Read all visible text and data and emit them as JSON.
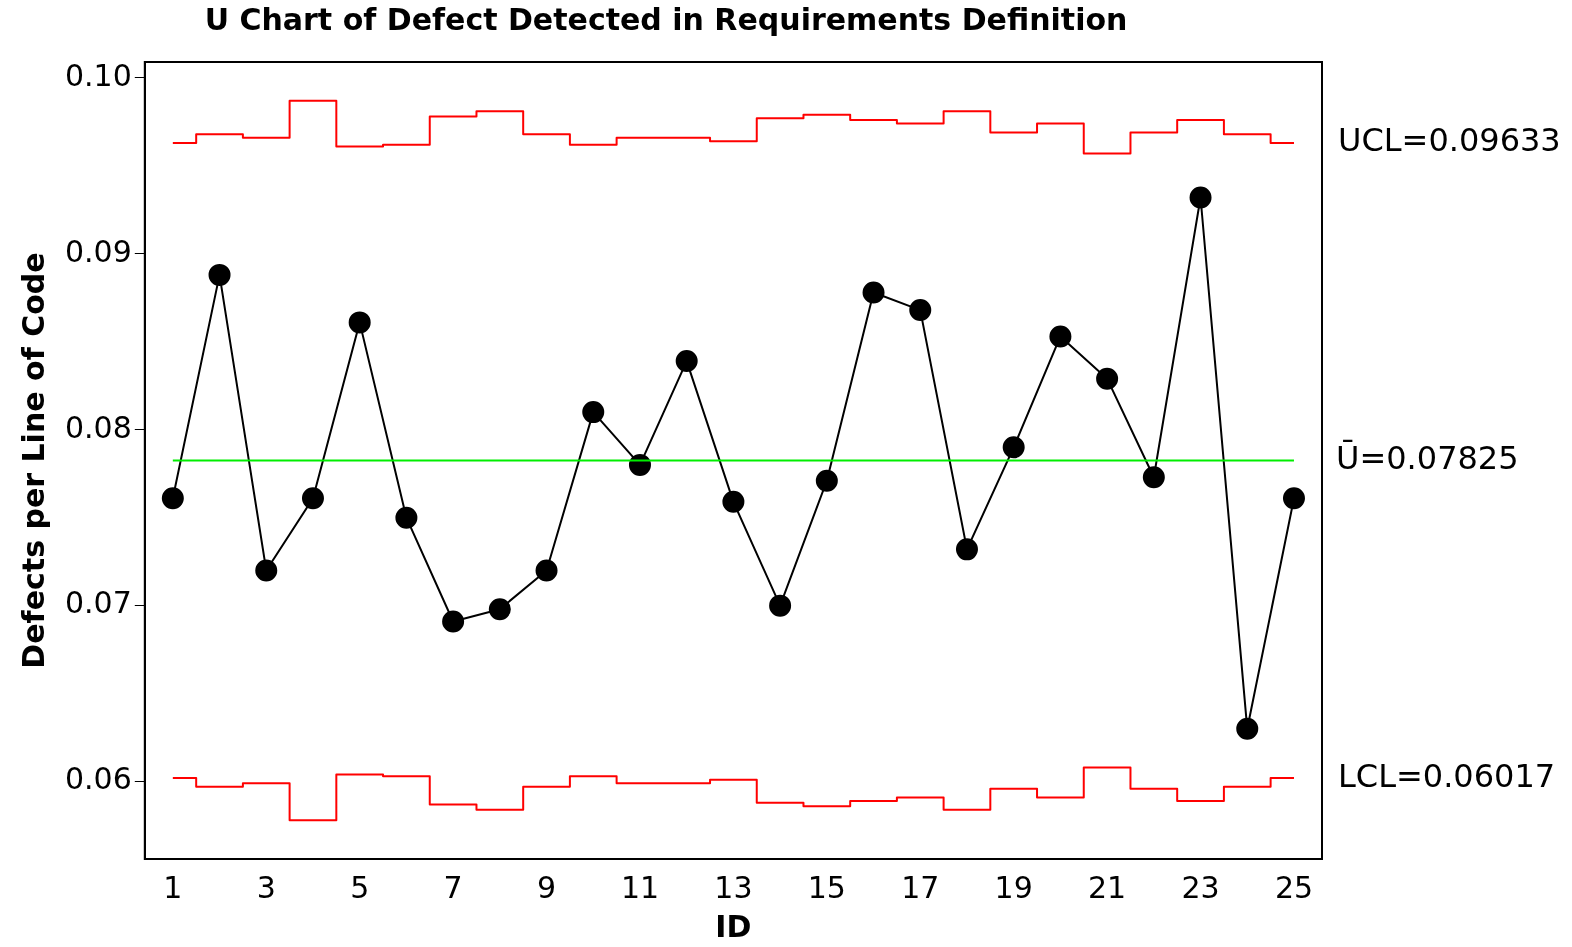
{
  "chart_data": {
    "type": "line",
    "title": "U Chart of Defect Detected in Requirements Definition",
    "xlabel": "ID",
    "ylabel": "Defects per Line of Code",
    "x": [
      1,
      2,
      3,
      4,
      5,
      6,
      7,
      8,
      9,
      10,
      11,
      12,
      13,
      14,
      15,
      16,
      17,
      18,
      19,
      20,
      21,
      22,
      23,
      24,
      25
    ],
    "series": [
      {
        "type": "step",
        "color": "#ff0000",
        "marker": "none",
        "values": [
          0.0963,
          0.0968,
          0.0966,
          0.0987,
          0.0961,
          0.0962,
          0.0978,
          0.0981,
          0.0968,
          0.0962,
          0.0966,
          0.0966,
          0.0964,
          0.0977,
          0.0979,
          0.0976,
          0.0974,
          0.0981,
          0.0969,
          0.0974,
          0.0957,
          0.0969,
          0.0976,
          0.0968,
          0.0963
        ]
      },
      {
        "type": "step",
        "color": "#ff0000",
        "marker": "none",
        "values": [
          0.0602,
          0.0597,
          0.0599,
          0.0578,
          0.0604,
          0.0603,
          0.0587,
          0.0584,
          0.0597,
          0.0603,
          0.0599,
          0.0599,
          0.0601,
          0.0588,
          0.0586,
          0.0589,
          0.0591,
          0.0584,
          0.0596,
          0.0591,
          0.0608,
          0.0596,
          0.0589,
          0.0597,
          0.0602
        ]
      },
      {
        "color": "#000000",
        "marker": "circle",
        "values": [
          0.0761,
          0.0888,
          0.072,
          0.0761,
          0.0861,
          0.075,
          0.0691,
          0.0698,
          0.072,
          0.081,
          0.078,
          0.0839,
          0.0759,
          0.07,
          0.0771,
          0.0878,
          0.0868,
          0.0732,
          0.079,
          0.0853,
          0.0829,
          0.0773,
          0.0932,
          0.063,
          0.0761
        ]
      }
    ],
    "ref_lines": [
      {
        "axis": "y",
        "value": 0.07825,
        "label": "Ū=0.07825",
        "color": "#00ee00"
      }
    ],
    "annotations": [
      {
        "text": "UCL=0.09633",
        "x": 25,
        "y": 0.09633
      },
      {
        "text": "LCL=0.06017",
        "x": 25,
        "y": 0.06017
      }
    ],
    "xlim": [
      0.4,
      25.6
    ],
    "xticks": [
      1,
      3,
      5,
      7,
      9,
      11,
      13,
      15,
      17,
      19,
      21,
      23,
      25
    ],
    "ylim": [
      0.0556,
      0.1009
    ],
    "yticks": [
      {
        "value": 0.06,
        "label": "0.06"
      },
      {
        "value": 0.07,
        "label": "0.07"
      },
      {
        "value": 0.08,
        "label": "0.08"
      },
      {
        "value": 0.09,
        "label": "0.09"
      },
      {
        "value": 0.1,
        "label": "0.10"
      }
    ],
    "grid": false,
    "legend": false
  }
}
